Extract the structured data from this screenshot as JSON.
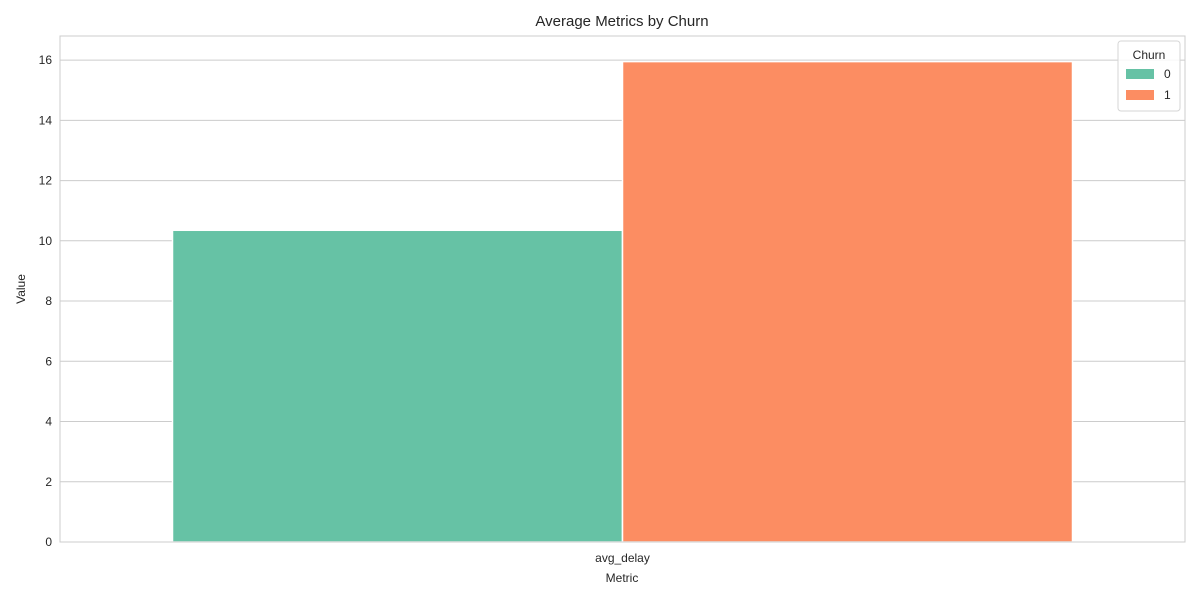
{
  "chart_data": {
    "type": "bar",
    "title": "Average Metrics by Churn",
    "xlabel": "Metric",
    "ylabel": "Value",
    "categories": [
      "avg_delay"
    ],
    "series": [
      {
        "name": "0",
        "values": [
          10.35
        ],
        "color": "#66c2a5"
      },
      {
        "name": "1",
        "values": [
          15.95
        ],
        "color": "#fc8d62"
      }
    ],
    "ylim": [
      0,
      16.8
    ],
    "yticks": [
      0,
      2,
      4,
      6,
      8,
      10,
      12,
      14,
      16
    ],
    "grid": true,
    "legend": {
      "title": "Churn",
      "placement": "top-right"
    }
  }
}
